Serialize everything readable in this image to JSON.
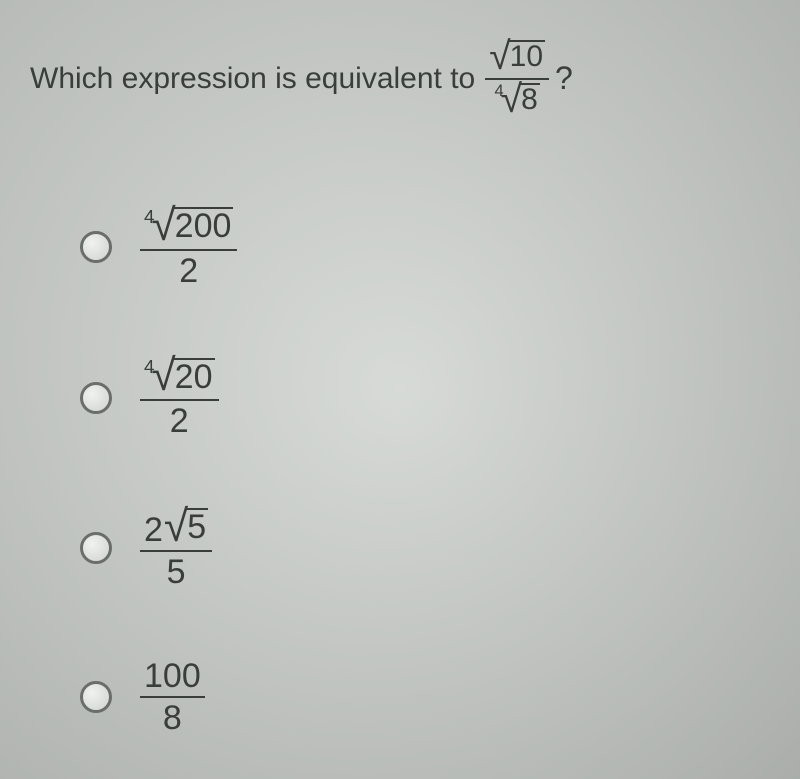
{
  "question": {
    "prefix_text": "Which expression is equivalent to",
    "suffix_text": "?",
    "expression": {
      "numerator": {
        "index": "",
        "radicand": "10"
      },
      "denominator": {
        "index": "4",
        "radicand": "8"
      }
    }
  },
  "options": [
    {
      "type": "radical_over_int",
      "numerator": {
        "index": "4",
        "radicand": "200"
      },
      "denominator": "2"
    },
    {
      "type": "radical_over_int",
      "numerator": {
        "index": "4",
        "radicand": "20"
      },
      "denominator": "2"
    },
    {
      "type": "coef_radical_over_int",
      "numerator": {
        "coef": "2",
        "index": "",
        "radicand": "5"
      },
      "denominator": "5"
    },
    {
      "type": "int_over_int",
      "numerator": "100",
      "denominator": "8"
    }
  ],
  "style": {
    "background_color": "#d4d8d3",
    "text_color": "#3a3e3a",
    "question_fontsize": 30,
    "option_fontsize": 34,
    "radio_border_color": "#6a6e6a"
  }
}
